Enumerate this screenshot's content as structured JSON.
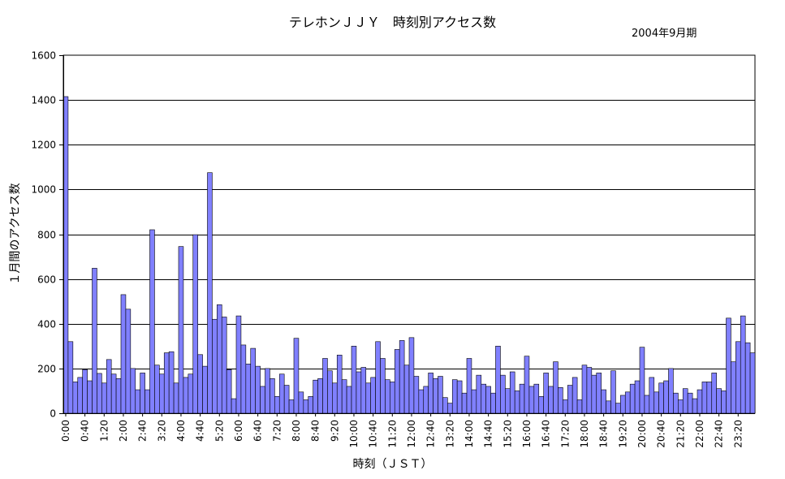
{
  "chart_data": {
    "type": "bar",
    "title": "テレホンＪＪＹ　時刻別アクセス数",
    "subtitle": "2004年9月期",
    "xlabel": "時刻（ＪＳＴ）",
    "ylabel": "１月間のアクセス数",
    "ylim": [
      0,
      1600
    ],
    "yticks": [
      0,
      200,
      400,
      600,
      800,
      1000,
      1200,
      1400,
      1600
    ],
    "grid": true,
    "bar_color": "#8080ff",
    "x_tick_labels": [
      "0:00",
      "0:40",
      "1:20",
      "2:00",
      "2:40",
      "3:20",
      "4:00",
      "4:40",
      "5:20",
      "6:00",
      "6:40",
      "7:20",
      "8:00",
      "8:40",
      "9:20",
      "10:00",
      "10:40",
      "11:20",
      "12:00",
      "12:40",
      "13:20",
      "14:00",
      "14:40",
      "15:20",
      "16:00",
      "16:40",
      "17:20",
      "18:00",
      "18:40",
      "19:20",
      "20:00",
      "20:40",
      "21:20",
      "22:00",
      "22:40",
      "23:20"
    ],
    "interval_minutes": 10,
    "values": [
      1415,
      320,
      140,
      160,
      195,
      145,
      648,
      178,
      135,
      240,
      175,
      155,
      530,
      465,
      200,
      105,
      180,
      105,
      820,
      215,
      175,
      270,
      275,
      135,
      745,
      160,
      175,
      798,
      262,
      210,
      1075,
      420,
      485,
      430,
      195,
      65,
      435,
      305,
      220,
      290,
      210,
      120,
      200,
      155,
      75,
      175,
      125,
      60,
      335,
      95,
      60,
      75,
      148,
      155,
      245,
      190,
      135,
      260,
      150,
      120,
      300,
      185,
      205,
      135,
      160,
      320,
      245,
      150,
      140,
      285,
      325,
      215,
      338,
      165,
      105,
      120,
      180,
      155,
      165,
      70,
      45,
      150,
      145,
      90,
      245,
      105,
      170,
      130,
      120,
      90,
      300,
      170,
      110,
      185,
      100,
      130,
      255,
      120,
      130,
      75,
      180,
      120,
      230,
      115,
      60,
      125,
      160,
      60,
      215,
      205,
      170,
      180,
      105,
      55,
      190,
      45,
      80,
      95,
      130,
      145,
      295,
      80,
      160,
      95,
      135,
      145,
      200,
      90,
      60,
      110,
      90,
      65,
      105,
      140,
      140,
      180,
      110,
      100,
      425,
      230,
      320,
      435,
      315,
      270
    ]
  }
}
